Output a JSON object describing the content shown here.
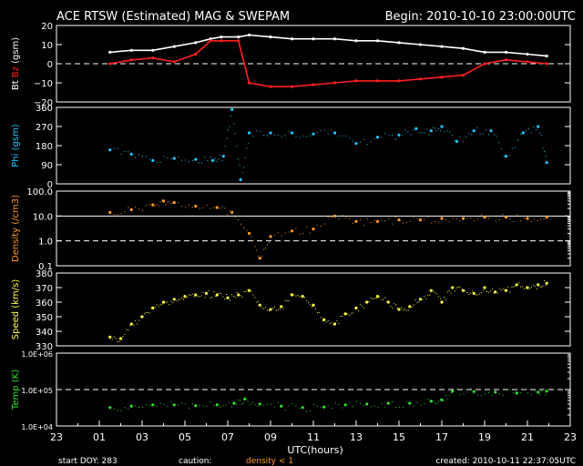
{
  "header": {
    "title": "ACE RTSW (Estimated) MAG & SWEPAM",
    "begin": "Begin: 2010-10-10 23:00:00UTC"
  },
  "footer": {
    "start_doy": "start DOY: 283",
    "caution": "caution:",
    "density_note": "density < 1",
    "created": "created: 2010-10-11 22:37:05UTC"
  },
  "colors": {
    "bt": "#ffffff",
    "bz": "#ff2020",
    "phi": "#20c8ff",
    "density": "#ff9a28",
    "speed": "#ffff40",
    "temp": "#30e030",
    "axis": "#ffffff",
    "background": "#000000"
  },
  "chart_data": [
    {
      "type": "line",
      "panel": "mag",
      "ylabel_parts": [
        "Bt",
        "Bz",
        "(gsm)"
      ],
      "ylim": [
        -20,
        20
      ],
      "yticks": [
        "20",
        "10",
        "0",
        "−10",
        "−20"
      ],
      "ytick_values": [
        20,
        10,
        0,
        -10,
        -20
      ],
      "reference_lines": [
        0
      ],
      "x_hours": [
        2.5,
        3.5,
        4.5,
        5.5,
        6.5,
        7.2,
        7.7,
        8.5,
        9.0,
        10.0,
        11.0,
        12.0,
        13.0,
        14.0,
        15.0,
        16.0,
        17.0,
        18.0,
        19.0,
        20.0,
        21.0,
        22.0,
        22.9
      ],
      "series": [
        {
          "name": "Bt",
          "values": [
            6,
            7,
            7,
            9,
            11,
            13,
            14,
            14,
            15,
            14,
            13,
            13,
            13,
            12,
            12,
            11,
            10,
            9,
            8,
            6,
            6,
            5,
            4
          ]
        },
        {
          "name": "Bz",
          "values": [
            0,
            2,
            3,
            1,
            5,
            12,
            12,
            12,
            -10,
            -12,
            -12,
            -11,
            -10,
            -9,
            -9,
            -9,
            -8,
            -7,
            -6,
            0,
            2,
            1,
            0
          ]
        }
      ]
    },
    {
      "type": "scatter",
      "panel": "phi",
      "ylabel": "Phi (gsm)",
      "ylim": [
        0,
        360
      ],
      "yticks": [
        "360",
        "270",
        "180",
        "90",
        "0"
      ],
      "ytick_values": [
        360,
        270,
        180,
        90,
        0
      ],
      "x_hours": [
        2.5,
        3.5,
        4.5,
        5.5,
        6.5,
        7.3,
        7.8,
        8.2,
        8.6,
        9.0,
        10.0,
        11.0,
        12.0,
        13.0,
        14.0,
        15.0,
        16.0,
        16.8,
        17.5,
        18.0,
        18.7,
        19.5,
        20.3,
        21.0,
        21.8,
        22.5,
        22.9
      ],
      "values": [
        160,
        140,
        110,
        120,
        115,
        110,
        130,
        350,
        20,
        240,
        240,
        240,
        235,
        240,
        190,
        220,
        230,
        260,
        250,
        270,
        200,
        250,
        250,
        130,
        240,
        270,
        100
      ]
    },
    {
      "type": "scatter",
      "panel": "density",
      "ylabel": "Density (/cm3)",
      "log_scale": true,
      "ylim": [
        0.1,
        100
      ],
      "yticks": [
        "100.0",
        "10.0",
        "1.0",
        "0.1"
      ],
      "ytick_values": [
        100,
        10,
        1,
        0.1
      ],
      "reference_lines": [
        10,
        1
      ],
      "x_hours": [
        2.5,
        3.5,
        4.5,
        5.0,
        5.5,
        6.5,
        7.5,
        8.2,
        9.0,
        9.5,
        10.0,
        11.0,
        12.0,
        13.0,
        14.0,
        15.0,
        16.0,
        17.0,
        18.0,
        19.0,
        20.0,
        21.0,
        22.0,
        22.9
      ],
      "values": [
        14,
        18,
        28,
        40,
        35,
        25,
        22,
        14,
        2,
        0.2,
        1.5,
        2.5,
        3,
        10,
        6,
        6,
        7,
        7,
        8,
        8,
        9,
        9,
        8,
        9
      ]
    },
    {
      "type": "scatter",
      "panel": "speed",
      "ylabel": "Speed (km/s)",
      "ylim": [
        330,
        380
      ],
      "yticks": [
        "380",
        "370",
        "360",
        "350",
        "340",
        "330"
      ],
      "ytick_values": [
        380,
        370,
        360,
        350,
        340,
        330
      ],
      "x_hours": [
        2.5,
        3.0,
        3.5,
        4.0,
        4.5,
        5.0,
        5.5,
        6.0,
        6.5,
        7.0,
        7.5,
        8.0,
        8.5,
        9.0,
        9.5,
        10.0,
        10.5,
        11.0,
        11.5,
        12.0,
        12.5,
        13.0,
        13.5,
        14.0,
        14.5,
        15.0,
        15.5,
        16.0,
        16.5,
        17.0,
        17.5,
        18.0,
        18.5,
        19.0,
        19.5,
        20.0,
        20.5,
        21.0,
        21.5,
        22.0,
        22.5,
        22.9
      ],
      "values": [
        336,
        335,
        345,
        350,
        356,
        360,
        362,
        364,
        365,
        366,
        365,
        363,
        365,
        368,
        358,
        355,
        357,
        365,
        364,
        358,
        348,
        345,
        352,
        356,
        360,
        364,
        360,
        355,
        357,
        362,
        368,
        360,
        370,
        368,
        366,
        370,
        367,
        368,
        372,
        370,
        372,
        373
      ]
    },
    {
      "type": "scatter",
      "panel": "temp",
      "ylabel": "Temp (K)",
      "log_scale": true,
      "ylim": [
        10000,
        1000000
      ],
      "yticks": [
        "1.0E+06",
        "1.0E+05",
        "1.0E+04"
      ],
      "ytick_values": [
        1000000,
        100000,
        10000
      ],
      "reference_lines": [
        100000
      ],
      "x_hours": [
        2.5,
        3.5,
        4.5,
        5.5,
        6.5,
        7.5,
        8.3,
        8.8,
        9.5,
        10.5,
        11.5,
        12.5,
        13.5,
        14.5,
        15.5,
        16.5,
        17.5,
        18.0,
        18.5,
        19.5,
        20.5,
        21.5,
        22.5,
        22.9
      ],
      "values": [
        32000,
        35000,
        38000,
        38000,
        36000,
        38000,
        42000,
        55000,
        40000,
        35000,
        32000,
        33000,
        38000,
        40000,
        42000,
        42000,
        48000,
        52000,
        90000,
        88000,
        85000,
        80000,
        85000,
        90000
      ]
    }
  ],
  "xaxis": {
    "label": "UTC(hours)",
    "tick_labels": [
      "23",
      "01",
      "03",
      "05",
      "07",
      "09",
      "11",
      "13",
      "15",
      "17",
      "19",
      "21",
      "23"
    ],
    "start_hour": 0,
    "end_hour": 24
  }
}
